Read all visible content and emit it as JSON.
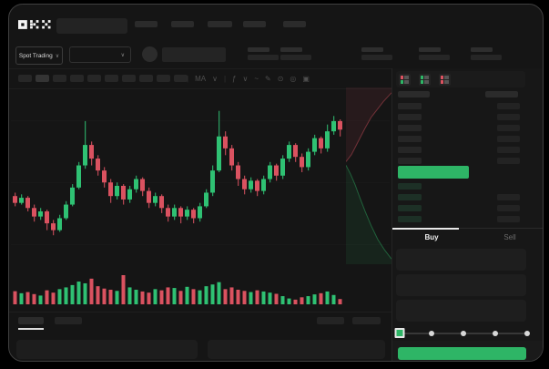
{
  "app": {
    "brand": "OKX"
  },
  "header": {
    "nav_placeholder_count": 5
  },
  "ticker_bar": {
    "market_selector": {
      "label": "Spot Trading",
      "chevron": "∨"
    },
    "pair_dropdown": {
      "chevron": "∨"
    },
    "stat_placeholder_count": 5
  },
  "chart_toolbar": {
    "timeframe_placeholder_count": 10,
    "active_timeframe_index": 1,
    "tools": [
      {
        "name": "divider",
        "glyph": "|"
      },
      {
        "name": "ma-indicator-button",
        "glyph": "MA"
      },
      {
        "name": "chevron-down-icon",
        "glyph": "∨"
      },
      {
        "name": "divider",
        "glyph": "|"
      },
      {
        "name": "function-indicator-button",
        "glyph": "ƒ"
      },
      {
        "name": "chevron-down-icon",
        "glyph": "∨"
      },
      {
        "name": "line-style-icon",
        "glyph": "~"
      },
      {
        "name": "draw-icon",
        "glyph": "✎"
      },
      {
        "name": "camera-icon",
        "glyph": "⊙"
      },
      {
        "name": "settings-icon",
        "glyph": "◎"
      },
      {
        "name": "fullscreen-icon",
        "glyph": "▣"
      }
    ]
  },
  "chart_data": {
    "type": "candlestick",
    "has_volume_pane": true,
    "axis_labels_visible": false,
    "price_scale": [
      0,
      100
    ],
    "candles": [
      [
        40,
        36,
        34,
        42
      ],
      [
        36,
        39,
        35,
        41
      ],
      [
        39,
        33,
        31,
        40
      ],
      [
        33,
        28,
        25,
        35
      ],
      [
        28,
        31,
        26,
        33
      ],
      [
        31,
        24,
        20,
        32
      ],
      [
        24,
        20,
        17,
        26
      ],
      [
        20,
        27,
        19,
        29
      ],
      [
        27,
        35,
        26,
        37
      ],
      [
        35,
        45,
        34,
        47
      ],
      [
        45,
        58,
        44,
        60
      ],
      [
        58,
        70,
        56,
        84
      ],
      [
        70,
        62,
        58,
        72
      ],
      [
        62,
        55,
        52,
        64
      ],
      [
        55,
        48,
        45,
        57
      ],
      [
        48,
        40,
        36,
        50
      ],
      [
        40,
        46,
        38,
        48
      ],
      [
        46,
        38,
        35,
        47
      ],
      [
        38,
        44,
        36,
        46
      ],
      [
        44,
        50,
        42,
        52
      ],
      [
        50,
        43,
        40,
        51
      ],
      [
        43,
        36,
        33,
        45
      ],
      [
        36,
        40,
        34,
        42
      ],
      [
        40,
        33,
        30,
        41
      ],
      [
        33,
        28,
        25,
        35
      ],
      [
        28,
        33,
        26,
        35
      ],
      [
        33,
        28,
        24,
        34
      ],
      [
        28,
        32,
        26,
        34
      ],
      [
        32,
        27,
        24,
        33
      ],
      [
        27,
        34,
        25,
        36
      ],
      [
        34,
        42,
        33,
        44
      ],
      [
        42,
        55,
        40,
        58
      ],
      [
        55,
        75,
        54,
        90
      ],
      [
        75,
        68,
        64,
        78
      ],
      [
        68,
        58,
        55,
        70
      ],
      [
        58,
        50,
        46,
        60
      ],
      [
        50,
        44,
        41,
        52
      ],
      [
        44,
        49,
        42,
        51
      ],
      [
        49,
        43,
        40,
        50
      ],
      [
        43,
        50,
        41,
        52
      ],
      [
        50,
        58,
        48,
        60
      ],
      [
        58,
        52,
        49,
        59
      ],
      [
        52,
        62,
        50,
        64
      ],
      [
        62,
        70,
        60,
        72
      ],
      [
        70,
        63,
        60,
        71
      ],
      [
        63,
        57,
        54,
        65
      ],
      [
        57,
        66,
        55,
        68
      ],
      [
        66,
        74,
        64,
        76
      ],
      [
        74,
        68,
        65,
        75
      ],
      [
        68,
        78,
        66,
        82
      ],
      [
        78,
        84,
        76,
        87
      ],
      [
        84,
        79,
        75,
        85
      ]
    ],
    "volume": [
      45,
      38,
      42,
      35,
      30,
      48,
      40,
      52,
      58,
      66,
      78,
      72,
      88,
      62,
      54,
      50,
      46,
      100,
      58,
      50,
      44,
      40,
      52,
      48,
      58,
      56,
      46,
      60,
      52,
      48,
      62,
      68,
      76,
      52,
      58,
      50,
      46,
      42,
      48,
      44,
      40,
      36,
      28,
      20,
      16,
      24,
      28,
      34,
      38,
      44,
      32,
      18
    ],
    "depth_overlay": {
      "asks_line": [
        [
          0,
          0.42
        ],
        [
          0.12,
          0.38
        ],
        [
          0.2,
          0.34
        ],
        [
          0.3,
          0.29
        ],
        [
          0.42,
          0.23
        ],
        [
          0.55,
          0.17
        ],
        [
          0.7,
          0.12
        ],
        [
          0.82,
          0.08
        ],
        [
          1,
          0.03
        ]
      ],
      "bids_line": [
        [
          0,
          0.44
        ],
        [
          0.1,
          0.49
        ],
        [
          0.2,
          0.55
        ],
        [
          0.3,
          0.62
        ],
        [
          0.42,
          0.7
        ],
        [
          0.55,
          0.78
        ],
        [
          0.7,
          0.86
        ],
        [
          0.85,
          0.92
        ],
        [
          1,
          0.97
        ]
      ]
    }
  },
  "order_book": {
    "view_modes": [
      "book-combined",
      "book-bids-only",
      "book-asks-only"
    ],
    "ask_row_count": 6,
    "bid_row_count": 4,
    "last_price_bar_color": "#2eb566"
  },
  "trade_panel": {
    "tabs": [
      {
        "label": "Buy",
        "active": true
      },
      {
        "label": "Sell",
        "active": false
      }
    ],
    "input_placeholder_count": 3,
    "slider": {
      "stops": [
        0,
        25,
        50,
        75,
        100
      ],
      "value": 0
    },
    "submit_button": {
      "label": "",
      "color": "#2eb566"
    }
  },
  "bottom_bar": {
    "tab_placeholder_count": 2,
    "right_placeholder_count": 2,
    "panel_placeholder_count": 2
  },
  "colors": {
    "up": "#2fc173",
    "down": "#da5260",
    "accent_green": "#2eb566",
    "background": "#151515"
  }
}
